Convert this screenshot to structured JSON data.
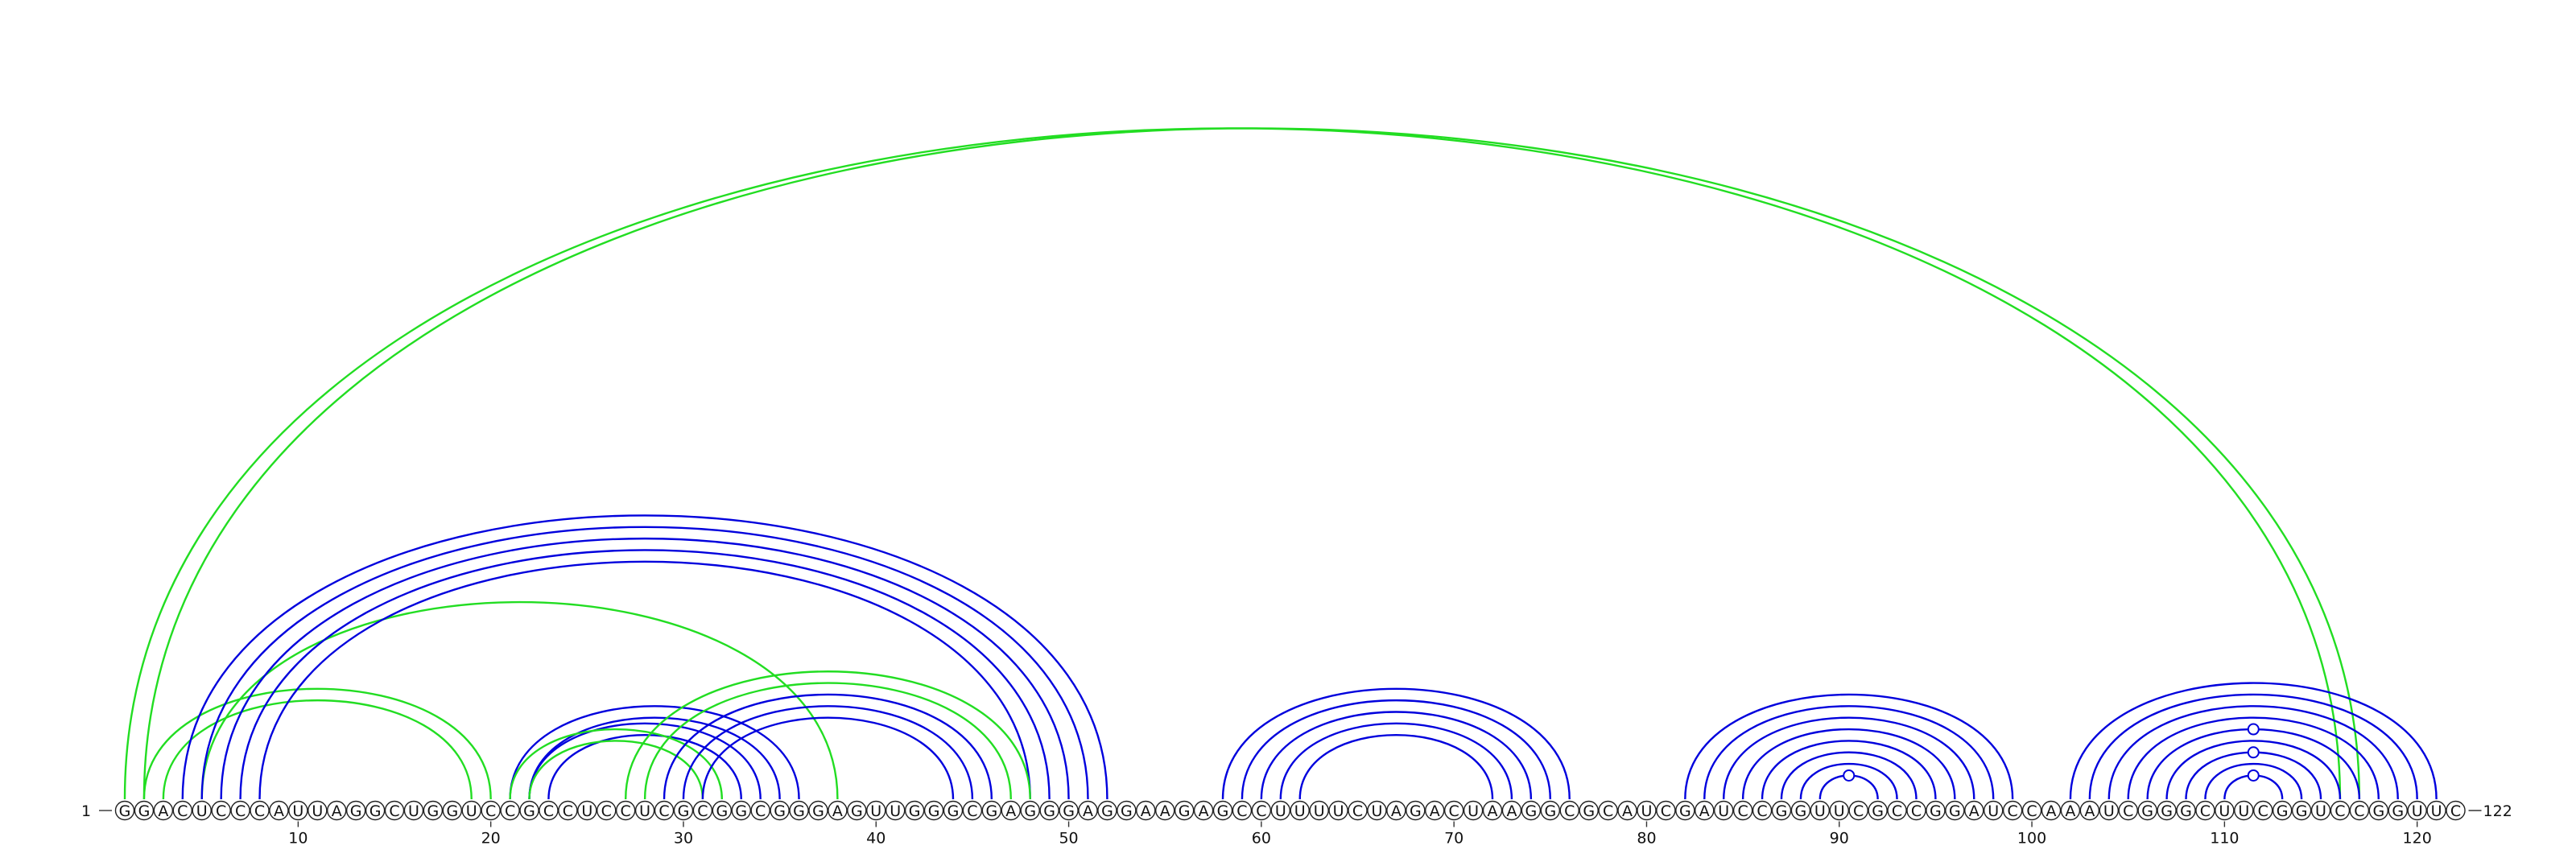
{
  "sequence": "GGACUCCCAUUAGGCUGGUCCGCCUCCUCGCGGCGGGAGUUGGGCGAGGGAGGAAGAGCCUUUUCUAGACUAAGGCGCAUCGAUCCGGUUCGCCGGAUCCAAAUCGGGCUUCGGUCCGGUUC",
  "length": 122,
  "start_label": "1",
  "end_label": "122",
  "tick_labels": [
    "10",
    "20",
    "30",
    "40",
    "50",
    "60",
    "70",
    "80",
    "90",
    "100",
    "110",
    "120"
  ],
  "colors": {
    "blue": "#0000dd",
    "green": "#22dd22"
  },
  "arcs": [
    {
      "from": 1,
      "to": 116,
      "color": "green"
    },
    {
      "from": 2,
      "to": 117,
      "color": "green"
    },
    {
      "from": 2,
      "to": 20,
      "color": "green"
    },
    {
      "from": 3,
      "to": 19,
      "color": "green"
    },
    {
      "from": 5,
      "to": 38,
      "color": "green"
    },
    {
      "from": 4,
      "to": 52,
      "color": "blue"
    },
    {
      "from": 5,
      "to": 51,
      "color": "blue"
    },
    {
      "from": 6,
      "to": 50,
      "color": "blue"
    },
    {
      "from": 7,
      "to": 49,
      "color": "blue"
    },
    {
      "from": 8,
      "to": 48,
      "color": "blue"
    },
    {
      "from": 21,
      "to": 36,
      "color": "blue"
    },
    {
      "from": 22,
      "to": 35,
      "color": "blue"
    },
    {
      "from": 22,
      "to": 34,
      "color": "blue"
    },
    {
      "from": 23,
      "to": 33,
      "color": "blue"
    },
    {
      "from": 21,
      "to": 32,
      "color": "green"
    },
    {
      "from": 22,
      "to": 31,
      "color": "green"
    },
    {
      "from": 27,
      "to": 48,
      "color": "green"
    },
    {
      "from": 28,
      "to": 47,
      "color": "green"
    },
    {
      "from": 29,
      "to": 46,
      "color": "blue"
    },
    {
      "from": 30,
      "to": 45,
      "color": "blue"
    },
    {
      "from": 31,
      "to": 44,
      "color": "blue"
    },
    {
      "from": 58,
      "to": 76,
      "color": "blue"
    },
    {
      "from": 59,
      "to": 75,
      "color": "blue"
    },
    {
      "from": 60,
      "to": 74,
      "color": "blue"
    },
    {
      "from": 61,
      "to": 73,
      "color": "blue"
    },
    {
      "from": 62,
      "to": 72,
      "color": "blue"
    },
    {
      "from": 82,
      "to": 99,
      "color": "blue"
    },
    {
      "from": 83,
      "to": 98,
      "color": "blue"
    },
    {
      "from": 84,
      "to": 97,
      "color": "blue"
    },
    {
      "from": 85,
      "to": 96,
      "color": "blue"
    },
    {
      "from": 86,
      "to": 95,
      "color": "blue"
    },
    {
      "from": 87,
      "to": 94,
      "color": "blue"
    },
    {
      "from": 88,
      "to": 93,
      "color": "blue"
    },
    {
      "from": 89,
      "to": 92,
      "color": "blue"
    },
    {
      "from": 102,
      "to": 121,
      "color": "blue"
    },
    {
      "from": 103,
      "to": 120,
      "color": "blue"
    },
    {
      "from": 104,
      "to": 119,
      "color": "blue"
    },
    {
      "from": 105,
      "to": 118,
      "color": "blue"
    },
    {
      "from": 106,
      "to": 117,
      "color": "blue"
    },
    {
      "from": 107,
      "to": 116,
      "color": "blue"
    },
    {
      "from": 108,
      "to": 115,
      "color": "blue"
    },
    {
      "from": 109,
      "to": 114,
      "color": "blue"
    },
    {
      "from": 110,
      "to": 113,
      "color": "blue"
    }
  ],
  "markers": [
    {
      "from": 89,
      "to": 92,
      "color": "blue"
    },
    {
      "from": 110,
      "to": 113,
      "color": "blue"
    },
    {
      "from": 108,
      "to": 115,
      "color": "blue"
    },
    {
      "from": 106,
      "to": 117,
      "color": "blue"
    }
  ]
}
